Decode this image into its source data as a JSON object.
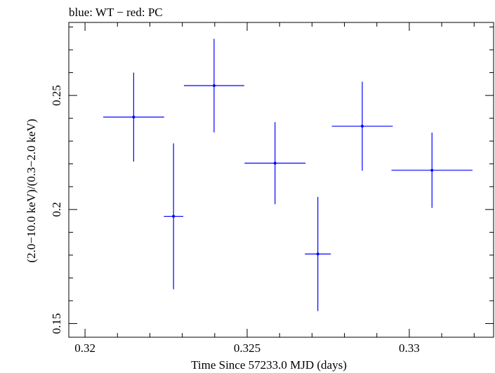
{
  "chart_data": {
    "type": "scatter",
    "title": "blue: WT − red: PC",
    "xlabel": "Time Since 57233.0 MJD (days)",
    "ylabel": "(2.0−10.0 keV)/(0.3−2.0 keV)",
    "xlim": [
      0.3195,
      0.3326
    ],
    "ylim": [
      0.144,
      0.282
    ],
    "x_ticks": [
      {
        "value": 0.32,
        "label": "0.32"
      },
      {
        "value": 0.325,
        "label": "0.325"
      },
      {
        "value": 0.33,
        "label": "0.33"
      }
    ],
    "y_ticks": [
      {
        "value": 0.15,
        "label": "0.15"
      },
      {
        "value": 0.2,
        "label": "0.2"
      },
      {
        "value": 0.25,
        "label": "0.25"
      }
    ],
    "x_minor_step": 0.001,
    "y_minor_step": 0.01,
    "grid": false,
    "series": [
      {
        "color": "#0000ff",
        "points": [
          {
            "x": 0.3215,
            "y": 0.2405,
            "xerr": 0.00094,
            "yerr_low": 0.0195,
            "yerr_high": 0.0195
          },
          {
            "x": 0.32273,
            "y": 0.197,
            "xerr": 0.0003,
            "yerr_low": 0.032,
            "yerr_high": 0.032
          },
          {
            "x": 0.32398,
            "y": 0.2543,
            "xerr": 0.00093,
            "yerr_low": 0.0205,
            "yerr_high": 0.0205
          },
          {
            "x": 0.32586,
            "y": 0.2203,
            "xerr": 0.00094,
            "yerr_low": 0.018,
            "yerr_high": 0.018
          },
          {
            "x": 0.32718,
            "y": 0.1805,
            "xerr": 0.0004,
            "yerr_low": 0.025,
            "yerr_high": 0.025
          },
          {
            "x": 0.32855,
            "y": 0.2365,
            "xerr": 0.00094,
            "yerr_low": 0.0195,
            "yerr_high": 0.0195
          },
          {
            "x": 0.3307,
            "y": 0.2172,
            "xerr": 0.00125,
            "yerr_low": 0.0165,
            "yerr_high": 0.0165
          }
        ]
      }
    ]
  }
}
